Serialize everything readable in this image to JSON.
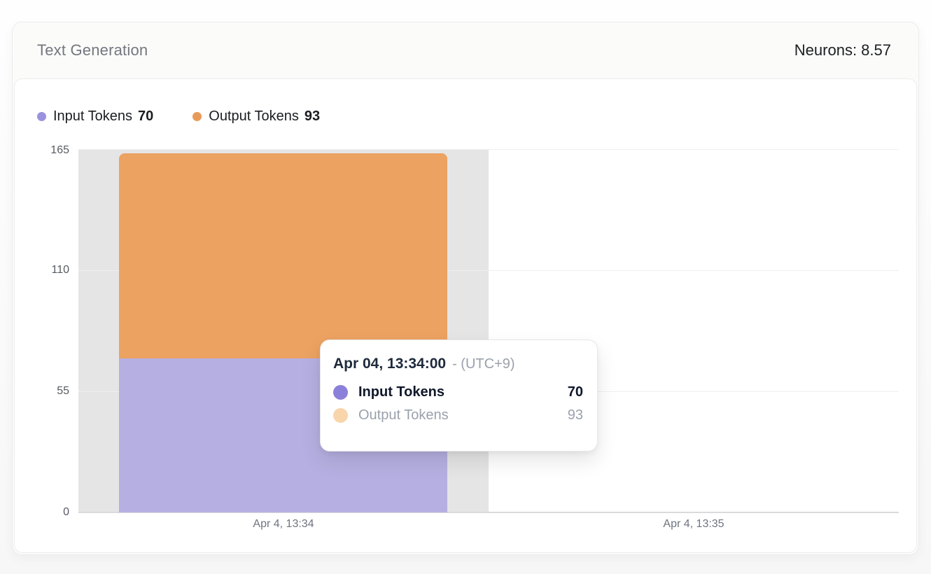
{
  "header": {
    "title": "Text Generation",
    "neurons": "Neurons: 8.57"
  },
  "legend": [
    {
      "label": "Input Tokens",
      "value": "70",
      "color": "#9a92dd"
    },
    {
      "label": "Output Tokens",
      "value": "93",
      "color": "#e89b59"
    }
  ],
  "chart_data": {
    "type": "bar",
    "stacked": true,
    "categories": [
      "Apr 4, 13:34",
      "Apr 4, 13:35"
    ],
    "series": [
      {
        "name": "Input Tokens",
        "values": [
          70,
          null
        ],
        "color": "#b6b0e2"
      },
      {
        "name": "Output Tokens",
        "values": [
          93,
          null
        ],
        "color": "#eca261"
      }
    ],
    "yticks": [
      0,
      55,
      110,
      165
    ],
    "ylim": [
      0,
      165
    ],
    "xlabel": "",
    "ylabel": "",
    "grid": true,
    "legend_position": "top-left",
    "hover_band_color": "#e5e5e6",
    "hovered_category": "Apr 4, 13:34"
  },
  "tooltip": {
    "time": "Apr 04, 13:34:00",
    "timezone": "- (UTC+9)",
    "rows": [
      {
        "label": "Input Tokens",
        "value": "70",
        "color": "#8b80d9",
        "active": true
      },
      {
        "label": "Output Tokens",
        "value": "93",
        "color": "#f8d5ab",
        "active": false
      }
    ]
  }
}
